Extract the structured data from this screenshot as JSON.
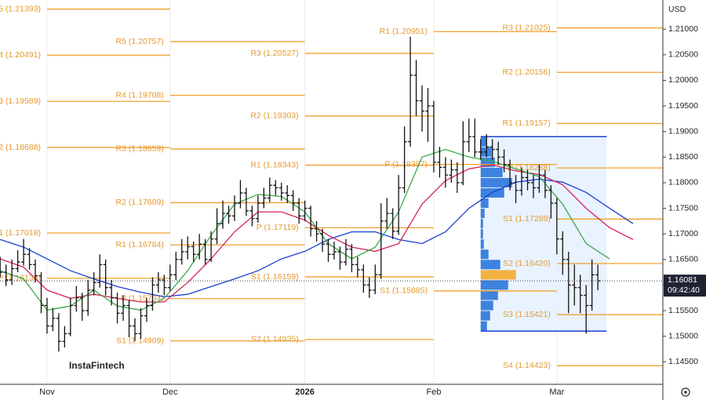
{
  "chart_data": {
    "type": "ohlc",
    "currency": "USD",
    "watermark": "InstaFintech",
    "time_label": "09:42:40",
    "last_price": 1.16081,
    "ylim": [
      1.1406,
      1.2157
    ],
    "yticks": [
      {
        "value": 1.145,
        "label": "1.14500"
      },
      {
        "value": 1.15,
        "label": "1.15000"
      },
      {
        "value": 1.155,
        "label": "1.15500"
      },
      {
        "value": 1.16,
        "label": "1.16000"
      },
      {
        "value": 1.165,
        "label": "1.16500"
      },
      {
        "value": 1.17,
        "label": "1.17000"
      },
      {
        "value": 1.175,
        "label": "1.17500"
      },
      {
        "value": 1.18,
        "label": "1.18000"
      },
      {
        "value": 1.185,
        "label": "1.18500"
      },
      {
        "value": 1.19,
        "label": "1.19000"
      },
      {
        "value": 1.195,
        "label": "1.19500"
      },
      {
        "value": 1.2,
        "label": "1.20000"
      },
      {
        "value": 1.205,
        "label": "1.20500"
      },
      {
        "value": 1.21,
        "label": "1.21000"
      }
    ],
    "categories": [
      null,
      null,
      null,
      null,
      null,
      null,
      null,
      null,
      "Nov",
      null,
      null,
      null,
      null,
      null,
      null,
      null,
      null,
      null,
      null,
      null,
      null,
      null,
      null,
      null,
      null,
      null,
      null,
      null,
      null,
      "Dec",
      null,
      null,
      null,
      null,
      null,
      null,
      null,
      null,
      null,
      null,
      null,
      null,
      null,
      null,
      null,
      null,
      null,
      null,
      null,
      null,
      null,
      null,
      "2026",
      null,
      null,
      null,
      null,
      null,
      null,
      null,
      null,
      null,
      null,
      null,
      null,
      null,
      null,
      null,
      null,
      null,
      null,
      null,
      null,
      null,
      "Feb",
      null,
      null,
      null,
      null,
      null,
      null,
      null,
      null,
      null,
      null,
      null,
      null,
      null,
      null,
      null,
      null,
      null,
      null,
      null,
      null,
      "Mar",
      null,
      null,
      null,
      null,
      null,
      null,
      null
    ],
    "color": "#111111",
    "open": [
      1.164,
      1.1625,
      1.161,
      1.1632,
      1.1645,
      1.166,
      1.164,
      1.1618,
      1.156,
      1.152,
      1.1535,
      1.149,
      1.1505,
      1.156,
      1.1575,
      1.155,
      1.159,
      1.1605,
      1.164,
      1.1595,
      1.1575,
      1.1545,
      1.156,
      1.152,
      1.1505,
      1.154,
      1.156,
      1.16,
      1.161,
      1.1595,
      1.162,
      1.165,
      1.1665,
      1.1675,
      1.166,
      1.168,
      1.165,
      1.169,
      1.172,
      1.174,
      1.1735,
      1.176,
      1.178,
      1.1745,
      1.173,
      1.176,
      1.177,
      1.1795,
      1.179,
      1.178,
      1.1775,
      1.176,
      1.1735,
      1.175,
      1.171,
      1.17,
      1.168,
      1.166,
      1.1665,
      1.1645,
      1.167,
      1.164,
      1.163,
      1.16,
      1.159,
      1.162,
      1.1725,
      1.174,
      1.1705,
      1.179,
      1.188,
      1.201,
      1.196,
      1.194,
      1.195,
      1.184,
      1.183,
      1.1815,
      1.1825,
      1.18,
      1.188,
      1.189,
      1.186,
      1.186,
      1.187,
      1.1865,
      1.185,
      1.1835,
      1.18,
      1.1785,
      1.181,
      1.18,
      1.179,
      1.1815,
      1.1785,
      1.176,
      1.169,
      1.165,
      1.16,
      1.1595,
      1.158,
      1.156,
      1.162
    ],
    "high": [
      1.1655,
      1.164,
      1.165,
      1.1668,
      1.169,
      1.1672,
      1.165,
      1.1625,
      1.1575,
      1.1555,
      1.1545,
      1.152,
      1.1575,
      1.1598,
      1.1585,
      1.161,
      1.1625,
      1.166,
      1.165,
      1.161,
      1.1585,
      1.158,
      1.157,
      1.1535,
      1.1555,
      1.1575,
      1.1615,
      1.1625,
      1.162,
      1.164,
      1.1665,
      1.169,
      1.1695,
      1.1685,
      1.17,
      1.169,
      1.1705,
      1.175,
      1.1765,
      1.1755,
      1.1775,
      1.1805,
      1.179,
      1.1755,
      1.1775,
      1.179,
      1.181,
      1.1805,
      1.18,
      1.1795,
      1.1785,
      1.177,
      1.1765,
      1.1755,
      1.1725,
      1.171,
      1.169,
      1.1685,
      1.1675,
      1.169,
      1.168,
      1.1655,
      1.164,
      1.1615,
      1.164,
      1.176,
      1.177,
      1.175,
      1.1815,
      1.191,
      1.2085,
      1.204,
      1.199,
      1.1985,
      1.196,
      1.187,
      1.185,
      1.1845,
      1.184,
      1.192,
      1.1925,
      1.1925,
      1.1885,
      1.1895,
      1.1885,
      1.188,
      1.1865,
      1.1845,
      1.1815,
      1.183,
      1.1825,
      1.1815,
      1.1835,
      1.1825,
      1.1795,
      1.177,
      1.1705,
      1.1665,
      1.164,
      1.162,
      1.16,
      1.165,
      1.164
    ],
    "low": [
      1.1615,
      1.1598,
      1.16,
      1.1625,
      1.1638,
      1.163,
      1.1605,
      1.1545,
      1.1505,
      1.151,
      1.147,
      1.1478,
      1.15,
      1.1548,
      1.153,
      1.154,
      1.158,
      1.1595,
      1.158,
      1.156,
      1.1525,
      1.153,
      1.1498,
      1.149,
      1.1495,
      1.1528,
      1.155,
      1.1585,
      1.158,
      1.1588,
      1.161,
      1.164,
      1.165,
      1.1645,
      1.165,
      1.164,
      1.1645,
      1.168,
      1.171,
      1.172,
      1.1725,
      1.175,
      1.1735,
      1.1715,
      1.1722,
      1.175,
      1.1762,
      1.1775,
      1.1765,
      1.176,
      1.1745,
      1.172,
      1.1725,
      1.1695,
      1.1685,
      1.1665,
      1.1645,
      1.165,
      1.163,
      1.1638,
      1.1625,
      1.1615,
      1.1585,
      1.1575,
      1.1582,
      1.1612,
      1.171,
      1.169,
      1.1698,
      1.178,
      1.187,
      1.193,
      1.19,
      1.188,
      1.182,
      1.181,
      1.179,
      1.18,
      1.178,
      1.1795,
      1.186,
      1.185,
      1.1845,
      1.185,
      1.1845,
      1.1835,
      1.182,
      1.1785,
      1.176,
      1.1775,
      1.1785,
      1.177,
      1.178,
      1.177,
      1.173,
      1.166,
      1.162,
      1.1545,
      1.156,
      1.1545,
      1.1505,
      1.155,
      1.159
    ],
    "close": [
      1.1625,
      1.161,
      1.1632,
      1.1645,
      1.166,
      1.164,
      1.1618,
      1.156,
      1.152,
      1.1535,
      1.149,
      1.1505,
      1.156,
      1.1575,
      1.155,
      1.159,
      1.1605,
      1.164,
      1.1595,
      1.1575,
      1.1545,
      1.156,
      1.152,
      1.1505,
      1.154,
      1.156,
      1.16,
      1.161,
      1.1595,
      1.162,
      1.165,
      1.1665,
      1.1675,
      1.166,
      1.168,
      1.165,
      1.169,
      1.172,
      1.174,
      1.1735,
      1.176,
      1.178,
      1.1745,
      1.173,
      1.176,
      1.177,
      1.1795,
      1.179,
      1.178,
      1.1775,
      1.176,
      1.1735,
      1.175,
      1.171,
      1.17,
      1.168,
      1.166,
      1.1665,
      1.1645,
      1.167,
      1.164,
      1.163,
      1.16,
      1.159,
      1.162,
      1.1725,
      1.174,
      1.1705,
      1.179,
      1.188,
      1.201,
      1.196,
      1.194,
      1.195,
      1.184,
      1.183,
      1.1815,
      1.1825,
      1.18,
      1.188,
      1.189,
      1.186,
      1.186,
      1.187,
      1.1865,
      1.185,
      1.1835,
      1.18,
      1.1785,
      1.181,
      1.18,
      1.179,
      1.1815,
      1.1785,
      1.176,
      1.169,
      1.165,
      1.16,
      1.1595,
      1.158,
      1.156,
      1.162,
      1.16081
    ],
    "moving_averages": [
      {
        "color": "#1a3fd1",
        "x": [
          0,
          4,
          8,
          12,
          16,
          20,
          24,
          28,
          32,
          36,
          40,
          44,
          48,
          52,
          56,
          60,
          64,
          68,
          72,
          76,
          80,
          84,
          88,
          92,
          96,
          100,
          104,
          108
        ],
        "values": [
          1.1689,
          1.1674,
          1.1651,
          1.1628,
          1.1612,
          1.1597,
          1.1586,
          1.1577,
          1.1582,
          1.1597,
          1.1612,
          1.1628,
          1.1651,
          1.1666,
          1.1689,
          1.1704,
          1.1704,
          1.1689,
          1.1681,
          1.1704,
          1.175,
          1.1781,
          1.1801,
          1.1807,
          1.1801,
          1.1781,
          1.175,
          1.172
        ]
      },
      {
        "color": "#d6245a",
        "x": [
          0,
          4,
          8,
          12,
          16,
          20,
          24,
          28,
          32,
          36,
          40,
          44,
          48,
          52,
          56,
          60,
          64,
          68,
          72,
          76,
          80,
          84,
          88,
          92,
          96,
          100,
          104,
          108
        ],
        "values": [
          1.1651,
          1.1635,
          1.159,
          1.1574,
          1.1582,
          1.1574,
          1.1567,
          1.1567,
          1.1605,
          1.1651,
          1.1704,
          1.1743,
          1.1743,
          1.1727,
          1.1697,
          1.1674,
          1.1666,
          1.1681,
          1.1758,
          1.1804,
          1.1827,
          1.1835,
          1.1823,
          1.1816,
          1.1796,
          1.175,
          1.1712,
          1.1689
        ]
      },
      {
        "color": "#3aa84a",
        "x": [
          0,
          4,
          8,
          12,
          16,
          20,
          24,
          28,
          32,
          36,
          40,
          44,
          48,
          52,
          56,
          60,
          64,
          68,
          72,
          76,
          80,
          84,
          88,
          92,
          96,
          100,
          104,
          108
        ],
        "values": [
          1.1628,
          1.1612,
          1.1551,
          1.1559,
          1.159,
          1.1559,
          1.1551,
          1.1574,
          1.1628,
          1.1697,
          1.1758,
          1.1777,
          1.1773,
          1.1743,
          1.1681,
          1.1651,
          1.1674,
          1.1743,
          1.185,
          1.1865,
          1.185,
          1.1842,
          1.1827,
          1.1812,
          1.1758,
          1.1681,
          1.1651,
          null
        ]
      }
    ],
    "pivot_color": "#f0a030",
    "pivots": [
      {
        "levels": [
          {
            "label": "5 (1.21393)",
            "value": 1.21393
          },
          {
            "label": "4 (1.20491)",
            "value": 1.20491
          },
          {
            "label": "3 (1.19589)",
            "value": 1.19589
          },
          {
            "label": "2 (1.18688)",
            "value": 1.18688
          },
          {
            "label": "1 (1.17018)",
            "value": 1.17018
          },
          {
            "label": "P (1.16133)",
            "value": 1.16133
          }
        ]
      },
      {
        "levels": [
          {
            "label": "R5 (1.20757)",
            "value": 1.20757
          },
          {
            "label": "R4 (1.19708)",
            "value": 1.19708
          },
          {
            "label": "R3 (1.18659)",
            "value": 1.18659
          },
          {
            "label": "R2 (1.17609)",
            "value": 1.17609
          },
          {
            "label": "R1 (1.16784)",
            "value": 1.16784
          },
          {
            "label": "P (1.15734)",
            "value": 1.15734
          },
          {
            "label": "S1 (1.14909)",
            "value": 1.14909
          }
        ]
      },
      {
        "levels": [
          {
            "label": "R3 (1.20527)",
            "value": 1.20527
          },
          {
            "label": "R2 (1.19303)",
            "value": 1.19303
          },
          {
            "label": "R1 (1.18343)",
            "value": 1.18343
          },
          {
            "label": "P (1.17119)",
            "value": 1.17119
          },
          {
            "label": "S1 (1.16159)",
            "value": 1.16159
          },
          {
            "label": "S2 (1.14935)",
            "value": 1.14935
          }
        ]
      },
      {
        "levels": [
          {
            "label": "R1 (1.20951)",
            "value": 1.20951
          },
          {
            "label": "P (1.18357)",
            "value": 1.18357
          },
          {
            "label": "S1 (1.15885)",
            "value": 1.15885
          }
        ]
      },
      {
        "levels": [
          {
            "label": "R3 (1.21025)",
            "value": 1.21025
          },
          {
            "label": "R2 (1.20156)",
            "value": 1.20156
          },
          {
            "label": "R1 (1.19157)",
            "value": 1.19157
          },
          {
            "label": "P (1.18288)",
            "value": 1.18288
          },
          {
            "label": "S1 (1.17289)",
            "value": 1.17289
          },
          {
            "label": "S2 (1.16420)",
            "value": 1.1642
          },
          {
            "label": "S3 (1.15421)",
            "value": 1.15421
          },
          {
            "label": "S4 (1.14423)",
            "value": 1.14423
          }
        ]
      }
    ],
    "volume_profile": {
      "color": "#1e6fd9",
      "highlight_color": "#f5a623",
      "bins": [
        1.151,
        1.153,
        1.155,
        1.157,
        1.159,
        1.161,
        1.163,
        1.165,
        1.167,
        1.169,
        1.171,
        1.173,
        1.175,
        1.177,
        1.179,
        1.181,
        1.183,
        1.185,
        1.187,
        1.189
      ],
      "values": [
        8,
        12,
        16,
        22,
        35,
        45,
        25,
        10,
        4,
        3,
        3,
        5,
        10,
        30,
        40,
        28,
        18,
        14,
        8
      ]
    }
  }
}
